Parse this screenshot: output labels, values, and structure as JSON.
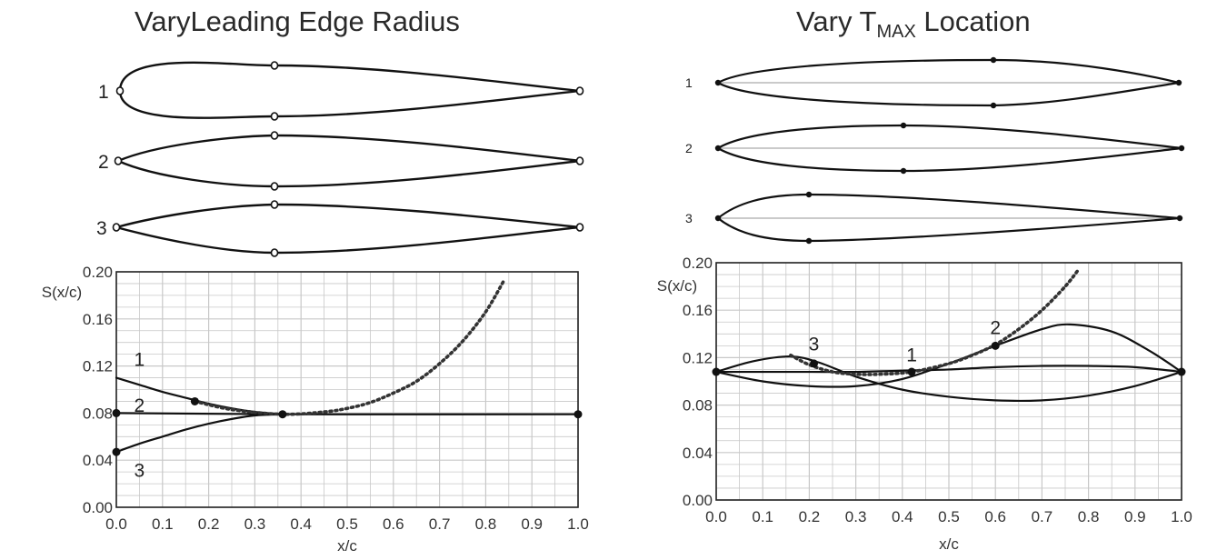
{
  "left_panel": {
    "title": "VaryLeading Edge Radius",
    "airfoil_labels": [
      "1",
      "2",
      "3"
    ]
  },
  "right_panel": {
    "title_prefix": "Vary T",
    "title_sub": "MAX",
    "title_suffix": " Location",
    "airfoil_labels": [
      "1",
      "2",
      "3"
    ]
  },
  "colors": {
    "curve": "#111111",
    "grid": "#c8c8c8",
    "dotted": "#333333"
  },
  "chart_data": [
    {
      "type": "line",
      "title": "VaryLeading Edge Radius",
      "xlabel": "x/c",
      "ylabel": "S(x/c)",
      "xlim": [
        0.0,
        1.0
      ],
      "ylim": [
        0.0,
        0.2
      ],
      "xticks": [
        "0.0",
        "0.1",
        "0.2",
        "0.3",
        "0.4",
        "0.5",
        "0.6",
        "0.7",
        "0.8",
        "0.9",
        "1.0"
      ],
      "yticks": [
        "0.00",
        "0.04",
        "0.08",
        "0.12",
        "0.16",
        "0.20"
      ],
      "grid": true,
      "series": [
        {
          "name": "1",
          "x": [
            0.0,
            0.05,
            0.1,
            0.15,
            0.2,
            0.25,
            0.3,
            0.36
          ],
          "y": [
            0.11,
            0.104,
            0.098,
            0.093,
            0.088,
            0.084,
            0.081,
            0.079
          ]
        },
        {
          "name": "2",
          "x": [
            0.0,
            0.36,
            1.0
          ],
          "y": [
            0.08,
            0.079,
            0.079
          ]
        },
        {
          "name": "3",
          "x": [
            0.0,
            0.05,
            0.1,
            0.15,
            0.2,
            0.25,
            0.3,
            0.36
          ],
          "y": [
            0.047,
            0.054,
            0.06,
            0.066,
            0.071,
            0.075,
            0.078,
            0.079
          ]
        },
        {
          "name": "",
          "style": "dotted",
          "x": [
            0.17,
            0.25,
            0.36,
            0.45,
            0.5,
            0.55,
            0.6,
            0.65,
            0.7,
            0.75,
            0.8,
            0.84
          ],
          "y": [
            0.09,
            0.083,
            0.079,
            0.081,
            0.084,
            0.089,
            0.097,
            0.107,
            0.122,
            0.141,
            0.166,
            0.193
          ]
        }
      ],
      "markers": [
        {
          "x": 0.0,
          "y": 0.08
        },
        {
          "x": 0.0,
          "y": 0.047
        },
        {
          "x": 0.36,
          "y": 0.079
        },
        {
          "x": 1.0,
          "y": 0.079
        },
        {
          "x": 0.17,
          "y": 0.09
        }
      ],
      "annotations": [
        {
          "text": "1",
          "x": 0.05,
          "y": 0.12
        },
        {
          "text": "2",
          "x": 0.05,
          "y": 0.081
        },
        {
          "text": "3",
          "x": 0.05,
          "y": 0.026
        }
      ]
    },
    {
      "type": "line",
      "title": "Vary TMAX Location",
      "xlabel": "x/c",
      "ylabel": "S(x/c)",
      "xlim": [
        0.0,
        1.0
      ],
      "ylim": [
        0.0,
        0.2
      ],
      "xticks": [
        "0.0",
        "0.1",
        "0.2",
        "0.3",
        "0.4",
        "0.5",
        "0.6",
        "0.7",
        "0.8",
        "0.9",
        "1.0"
      ],
      "yticks": [
        "0.00",
        "0.04",
        "0.08",
        "0.12",
        "0.16",
        "0.20"
      ],
      "grid": true,
      "series": [
        {
          "name": "1",
          "x": [
            0.0,
            0.1,
            0.2,
            0.3,
            0.4,
            0.5,
            0.6,
            0.7,
            0.8,
            0.9,
            1.0
          ],
          "y": [
            0.108,
            0.108,
            0.108,
            0.108,
            0.109,
            0.11,
            0.112,
            0.113,
            0.113,
            0.112,
            0.108
          ]
        },
        {
          "name": "2",
          "x": [
            0.0,
            0.1,
            0.2,
            0.3,
            0.4,
            0.5,
            0.6,
            0.7,
            0.76,
            0.85,
            0.93,
            1.0
          ],
          "y": [
            0.108,
            0.1,
            0.096,
            0.096,
            0.102,
            0.115,
            0.13,
            0.144,
            0.148,
            0.142,
            0.126,
            0.108
          ]
        },
        {
          "name": "3",
          "x": [
            0.0,
            0.08,
            0.16,
            0.22,
            0.3,
            0.4,
            0.5,
            0.6,
            0.7,
            0.8,
            0.9,
            1.0
          ],
          "y": [
            0.108,
            0.117,
            0.121,
            0.116,
            0.104,
            0.093,
            0.087,
            0.084,
            0.084,
            0.088,
            0.096,
            0.108
          ]
        },
        {
          "name": "",
          "style": "dotted",
          "x": [
            0.16,
            0.2,
            0.25,
            0.3,
            0.35,
            0.42,
            0.5,
            0.55,
            0.6,
            0.65,
            0.7,
            0.75,
            0.78
          ],
          "y": [
            0.122,
            0.114,
            0.108,
            0.106,
            0.106,
            0.108,
            0.115,
            0.122,
            0.131,
            0.144,
            0.16,
            0.18,
            0.195
          ]
        }
      ],
      "markers": [
        {
          "x": 0.0,
          "y": 0.108
        },
        {
          "x": 1.0,
          "y": 0.108
        },
        {
          "x": 0.21,
          "y": 0.115
        },
        {
          "x": 0.42,
          "y": 0.108
        },
        {
          "x": 0.6,
          "y": 0.13
        }
      ],
      "annotations": [
        {
          "text": "3",
          "x": 0.21,
          "y": 0.126
        },
        {
          "text": "1",
          "x": 0.42,
          "y": 0.117
        },
        {
          "text": "2",
          "x": 0.6,
          "y": 0.14
        }
      ]
    }
  ]
}
